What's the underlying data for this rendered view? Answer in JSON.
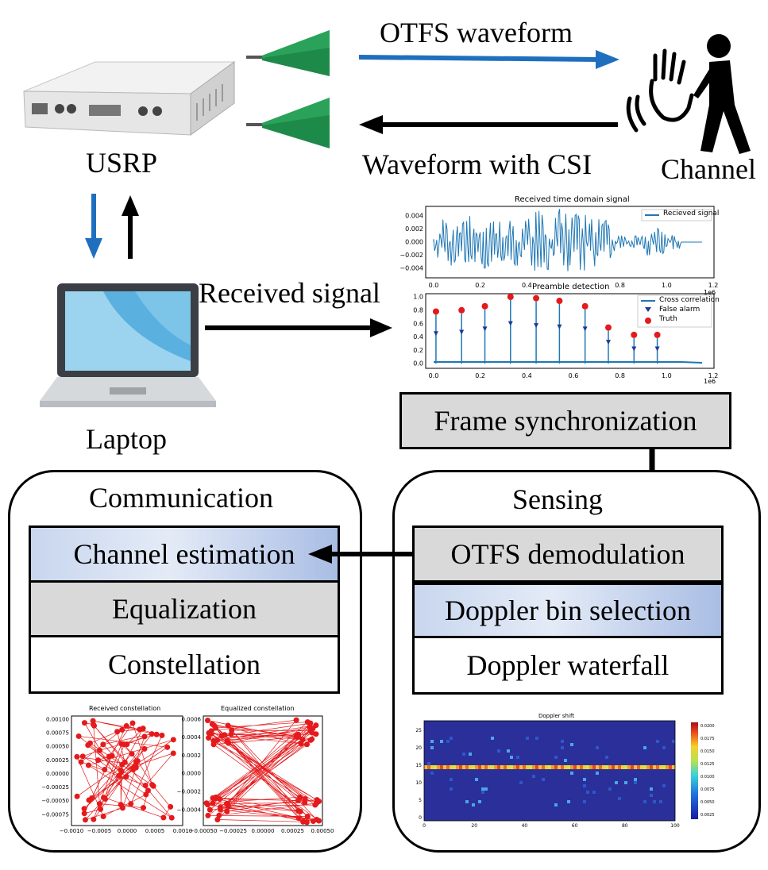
{
  "labels": {
    "otfs_waveform": "OTFS waveform",
    "waveform_csi": "Waveform with CSI",
    "usrp": "USRP",
    "channel": "Channel",
    "received_signal": "Received signal",
    "laptop": "Laptop"
  },
  "frame_sync": "Frame synchronization",
  "communication": {
    "title": "Communication",
    "steps": [
      "Channel estimation",
      "Equalization",
      "Constellation"
    ]
  },
  "sensing": {
    "title": "Sensing",
    "steps": [
      "OTFS demodulation",
      "Doppler bin selection",
      "Doppler waterfall"
    ]
  },
  "colors": {
    "blue_arrow": "#1f6fbf",
    "plot_blue": "#1f77b4",
    "red": "#e41a1c"
  },
  "plots": {
    "time_signal": {
      "title": "Received time domain signal",
      "legend": "Recieved signal",
      "yticks": [
        "0.004",
        "0.002",
        "0.000",
        "−0.002",
        "−0.004"
      ],
      "xticks": [
        "0.0",
        "0.2",
        "0.4",
        "0.6",
        "0.8",
        "1.0",
        "1.2"
      ],
      "xscale": "1e6"
    },
    "preamble": {
      "title": "Preamble detection",
      "legend": [
        "Cross correlation",
        "False alarm",
        "Truth"
      ],
      "yticks": [
        "1.0",
        "0.8",
        "0.6",
        "0.4",
        "0.2",
        "0.0"
      ],
      "xticks": [
        "0.0",
        "0.2",
        "0.4",
        "0.6",
        "0.8",
        "1.0",
        "1.2"
      ],
      "xscale": "1e6"
    },
    "received_constellation": {
      "title": "Received constellation",
      "yticks": [
        "0.00100",
        "0.00075",
        "0.00050",
        "0.00025",
        "0.00000",
        "−0.00025",
        "−0.00050",
        "−0.00075"
      ],
      "xticks": [
        "−0.0010",
        "−0.0005",
        "0.0000",
        "0.0005",
        "0.0010"
      ]
    },
    "equalized_constellation": {
      "title": "Equalized constellation",
      "yticks": [
        "0.0006",
        "0.0004",
        "0.0002",
        "0.0000",
        "−0.0002",
        "−0.0004"
      ],
      "xticks": [
        "−0.00050",
        "−0.00025",
        "0.00000",
        "0.00025",
        "0.00050"
      ]
    },
    "doppler": {
      "title": "Doppler shift",
      "yticks": [
        "25",
        "20",
        "15",
        "10",
        "5",
        "0"
      ],
      "xticks": [
        "0",
        "20",
        "40",
        "60",
        "80",
        "100"
      ],
      "cbar": [
        "0.0200",
        "0.0175",
        "0.0150",
        "0.0125",
        "0.0100",
        "0.0075",
        "0.0050",
        "0.0025"
      ]
    }
  },
  "chart_data": [
    {
      "type": "scatter",
      "title": "Preamble detection",
      "series": [
        {
          "name": "Truth",
          "x": [
            0.01,
            0.12,
            0.22,
            0.33,
            0.44,
            0.54,
            0.65,
            0.75,
            0.86,
            0.96
          ],
          "y": [
            0.78,
            0.8,
            0.86,
            1.0,
            0.98,
            0.94,
            0.86,
            0.54,
            0.43,
            0.43
          ]
        },
        {
          "name": "False alarm",
          "x": [
            0.01,
            0.12,
            0.22,
            0.33,
            0.44,
            0.54,
            0.65,
            0.75,
            0.86,
            0.96
          ],
          "y": [
            0.45,
            0.47,
            0.52,
            0.6,
            0.57,
            0.55,
            0.52,
            0.32,
            0.22,
            0.22
          ]
        }
      ],
      "ylim": [
        0,
        1.0
      ],
      "xlim": [
        0,
        1.2
      ]
    }
  ]
}
